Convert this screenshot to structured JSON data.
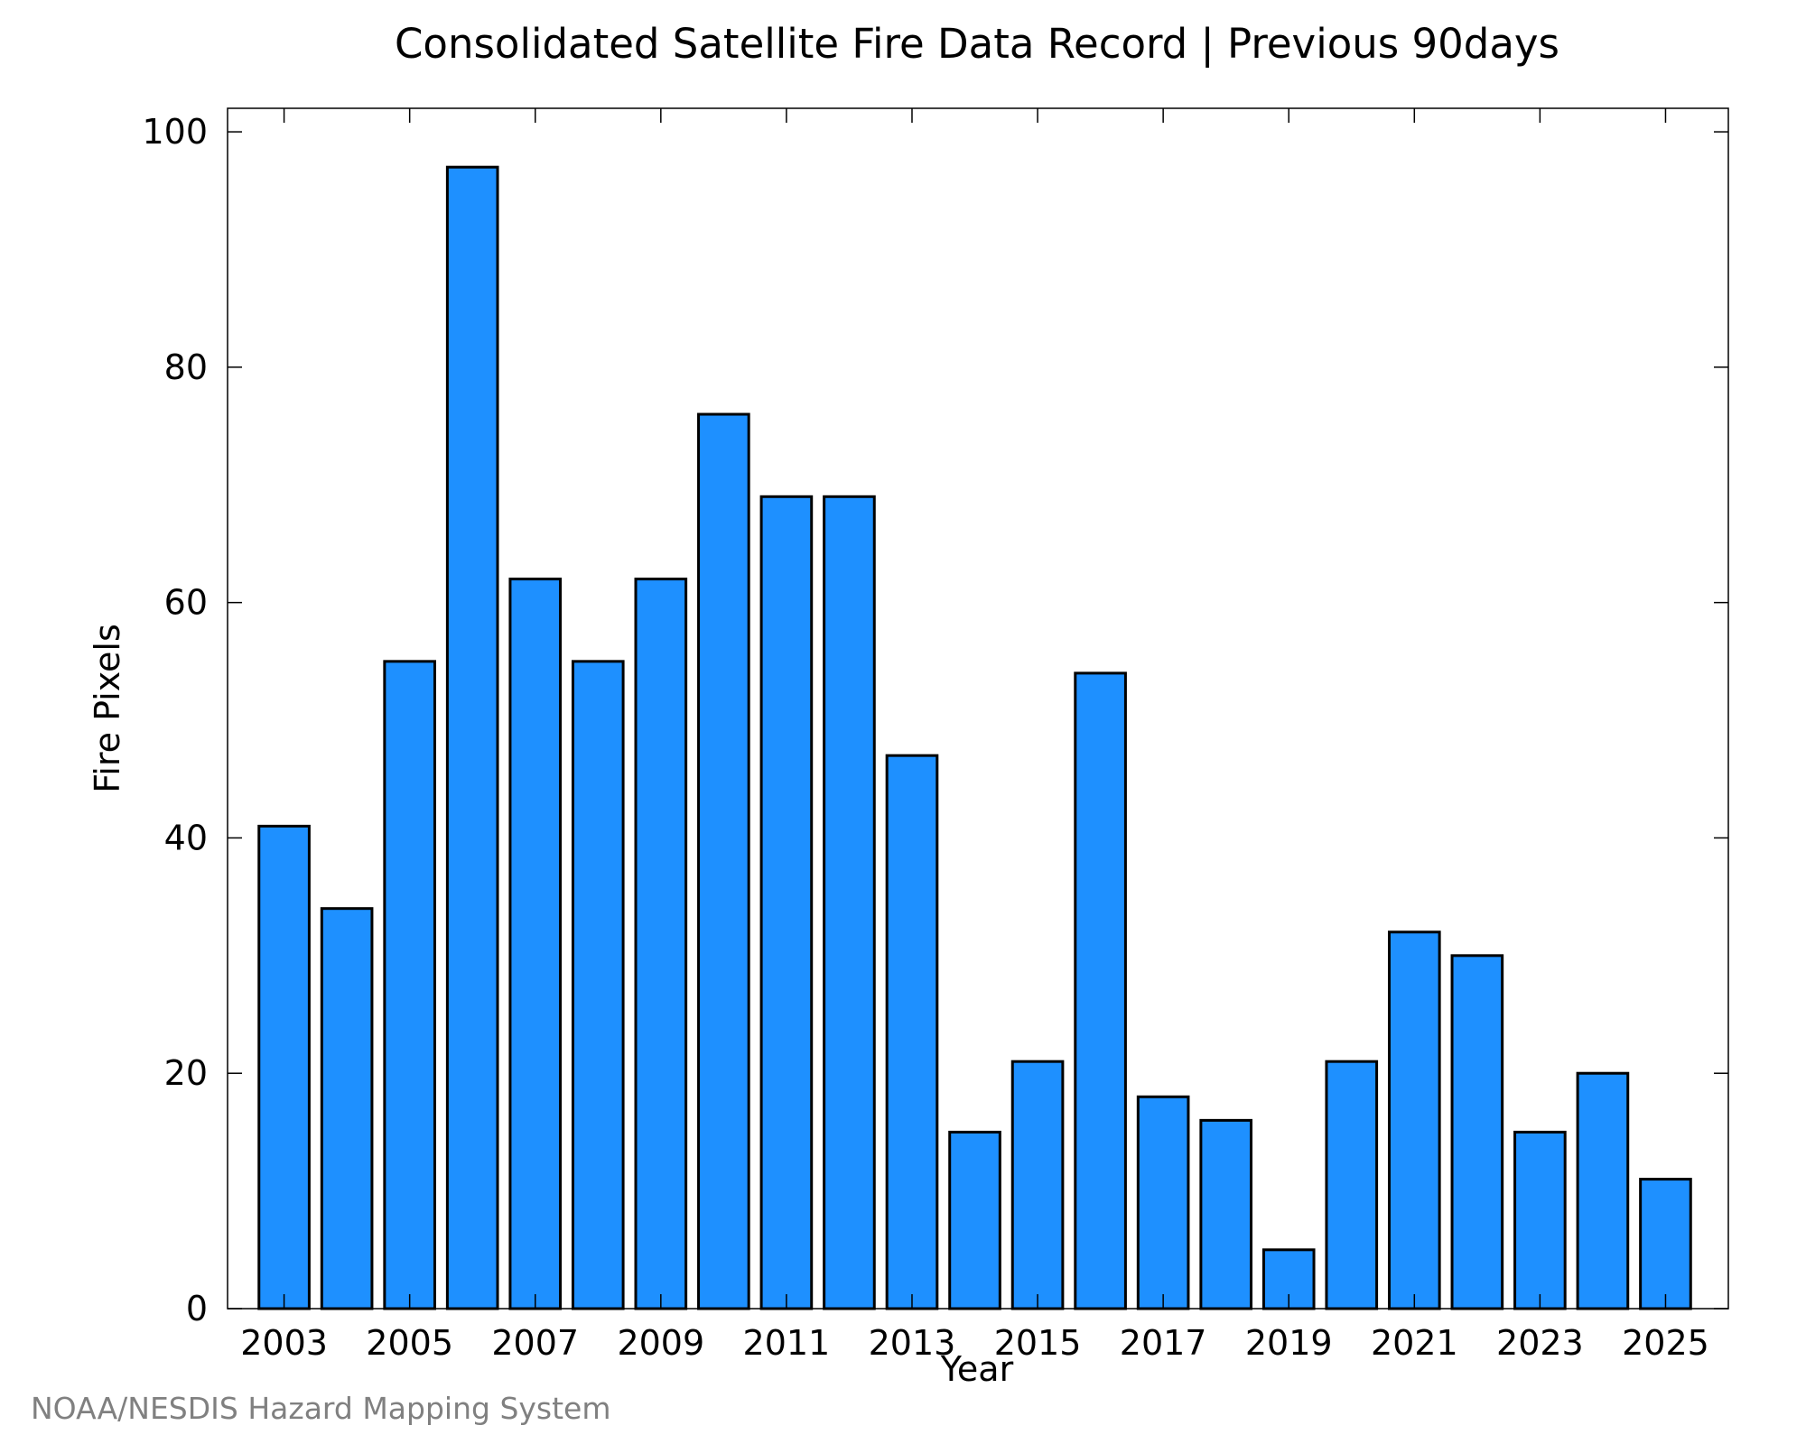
{
  "chart_data": {
    "type": "bar",
    "title": "Consolidated Satellite Fire Data Record | Previous 90days",
    "xlabel": "Year",
    "ylabel": "Fire Pixels",
    "categories": [
      2003,
      2004,
      2005,
      2006,
      2007,
      2008,
      2009,
      2010,
      2011,
      2012,
      2013,
      2014,
      2015,
      2016,
      2017,
      2018,
      2019,
      2020,
      2021,
      2022,
      2023,
      2024,
      2025
    ],
    "values": [
      41,
      34,
      55,
      97,
      62,
      55,
      62,
      76,
      69,
      69,
      47,
      15,
      21,
      54,
      18,
      16,
      5,
      21,
      32,
      30,
      15,
      20,
      11
    ],
    "x_tick_labels": [
      "2003",
      "2005",
      "2007",
      "2009",
      "2011",
      "2013",
      "2015",
      "2017",
      "2019",
      "2021",
      "2023",
      "2025"
    ],
    "y_tick_labels": [
      "0",
      "20",
      "40",
      "60",
      "80",
      "100"
    ],
    "y_ticks": [
      0,
      20,
      40,
      60,
      80,
      100
    ],
    "ylim": [
      0,
      102
    ],
    "xlim": [
      2002.1,
      2026
    ],
    "grid": false,
    "bar_color": "#1E90FF",
    "bar_edge_color": "#000000",
    "frame_color": "#000000"
  },
  "footer": {
    "credit": "NOAA/NESDIS Hazard Mapping System"
  }
}
